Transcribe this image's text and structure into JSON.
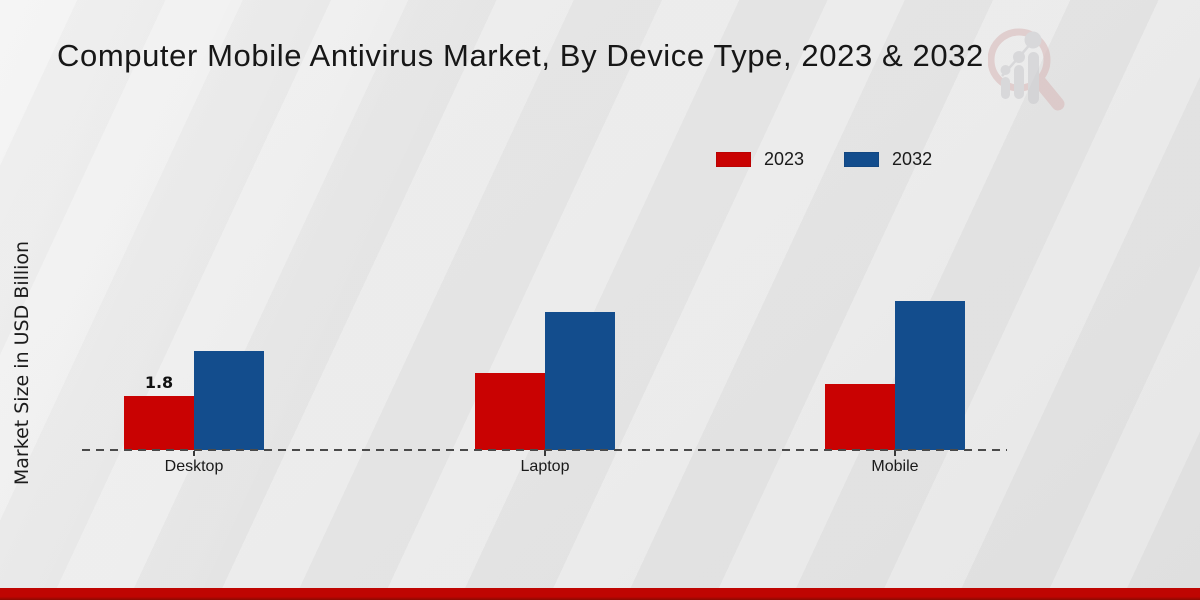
{
  "title": "Computer Mobile Antivirus Market, By Device Type, 2023 & 2032",
  "y_axis_label": "Market Size in USD Billion",
  "legend": {
    "items": [
      {
        "label": "2023",
        "color": "#c90202"
      },
      {
        "label": "2032",
        "color": "#134d8d"
      }
    ]
  },
  "colors": {
    "series_2023": "#c90202",
    "series_2032": "#134d8d",
    "axis_dash": "#4a4a4a",
    "bottom_band": "#bf0502",
    "background": "#e8e8e8",
    "watermark_ring": "#d8b6b6",
    "watermark_gray": "#c9c9cd"
  },
  "chart_data": {
    "type": "bar",
    "title": "Computer Mobile Antivirus Market, By Device Type, 2023 & 2032",
    "categories": [
      "Desktop",
      "Laptop",
      "Mobile"
    ],
    "series": [
      {
        "name": "2023",
        "color": "#c90202",
        "values": [
          1.8,
          2.55,
          2.2
        ]
      },
      {
        "name": "2032",
        "color": "#134d8d",
        "values": [
          3.3,
          4.6,
          4.95
        ]
      }
    ],
    "annotations": [
      {
        "series": "2023",
        "category": "Desktop",
        "text": "1.8"
      }
    ],
    "xlabel": "",
    "ylabel": "Market Size in USD Billion",
    "unit": "USD Billion",
    "ylim": [
      0,
      5.5
    ],
    "grid": false,
    "legend_position": "upper-right",
    "baseline_style": "dashed"
  }
}
